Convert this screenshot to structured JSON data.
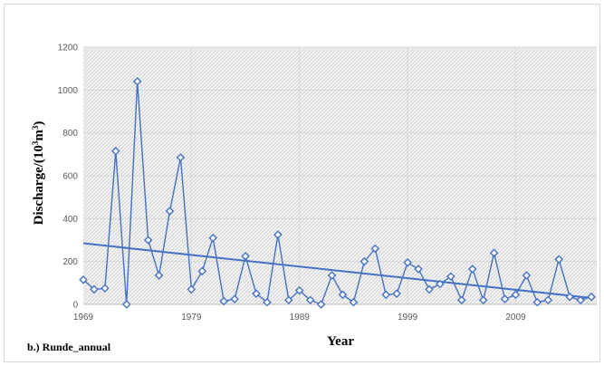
{
  "chart_data": {
    "type": "line",
    "panel_label": "b.) Runde_annual",
    "xlabel": "Year",
    "ylabel_main": "Discharge/(10",
    "ylabel_sup": "3",
    "ylabel_unit": "m",
    "ylabel_sup2": "3",
    "ylabel_close": ")",
    "xlim": [
      1969,
      2016.5
    ],
    "ylim": [
      0,
      1200
    ],
    "x_ticks": [
      1969,
      1979,
      1989,
      1999,
      2009
    ],
    "y_ticks": [
      0,
      200,
      400,
      600,
      800,
      1000,
      1200
    ],
    "grid": true,
    "plot_background": "hatched-gray",
    "series": [
      {
        "color": "#4472c4",
        "marker": "diamond-open",
        "x": [
          1969,
          1970,
          1971,
          1972,
          1973,
          1974,
          1975,
          1976,
          1977,
          1978,
          1979,
          1980,
          1981,
          1982,
          1983,
          1984,
          1985,
          1986,
          1987,
          1988,
          1989,
          1990,
          1991,
          1992,
          1993,
          1994,
          1995,
          1996,
          1997,
          1998,
          1999,
          2000,
          2001,
          2002,
          2003,
          2004,
          2005,
          2006,
          2007,
          2008,
          2009,
          2010,
          2011,
          2012,
          2013,
          2014,
          2015,
          2016
        ],
        "values": [
          115,
          70,
          75,
          715,
          0,
          1040,
          300,
          135,
          435,
          685,
          70,
          155,
          310,
          15,
          25,
          225,
          50,
          10,
          325,
          20,
          65,
          20,
          0,
          135,
          45,
          10,
          200,
          260,
          45,
          50,
          195,
          165,
          70,
          95,
          130,
          20,
          165,
          20,
          240,
          25,
          45,
          135,
          10,
          20,
          210,
          35,
          20,
          35
        ]
      }
    ],
    "trendline": {
      "color": "#4472c4",
      "x": [
        1969,
        2016
      ],
      "values": [
        285,
        30
      ]
    }
  }
}
